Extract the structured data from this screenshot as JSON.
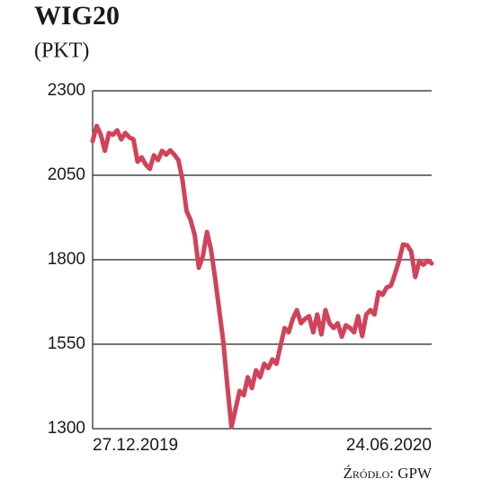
{
  "chart_data": {
    "type": "line",
    "title": "WIG20",
    "subtitle": "(PKT)",
    "source": "Źródło: GPW",
    "categories": [
      "27.12.2019",
      null,
      null,
      null,
      null,
      null,
      null,
      null,
      null,
      null,
      null,
      null,
      null,
      null,
      null,
      null,
      null,
      null,
      null,
      null,
      null,
      null,
      null,
      null,
      null,
      null,
      null,
      null,
      null,
      null,
      null,
      null,
      null,
      null,
      null,
      null,
      null,
      null,
      null,
      null,
      null,
      null,
      null,
      null,
      null,
      null,
      null,
      null,
      null,
      null,
      null,
      null,
      null,
      null,
      null,
      null,
      null,
      null,
      null,
      null,
      null,
      null,
      null,
      null,
      null,
      null,
      null,
      null,
      null,
      null,
      null,
      null,
      null,
      null,
      null,
      null,
      null,
      null,
      null,
      null,
      null,
      null,
      null,
      "24.06.2020"
    ],
    "values": [
      2151,
      2196,
      2170,
      2122,
      2175,
      2170,
      2183,
      2156,
      2175,
      2162,
      2156,
      2090,
      2103,
      2082,
      2069,
      2109,
      2095,
      2122,
      2111,
      2124,
      2111,
      2095,
      2037,
      1944,
      1917,
      1872,
      1776,
      1811,
      1882,
      1829,
      1744,
      1651,
      1558,
      1425,
      1305,
      1359,
      1412,
      1399,
      1452,
      1420,
      1473,
      1452,
      1492,
      1479,
      1505,
      1492,
      1545,
      1598,
      1585,
      1625,
      1651,
      1612,
      1625,
      1633,
      1585,
      1638,
      1579,
      1651,
      1612,
      1598,
      1612,
      1572,
      1606,
      1598,
      1585,
      1633,
      1574,
      1638,
      1651,
      1638,
      1704,
      1696,
      1718,
      1723,
      1757,
      1797,
      1845,
      1843,
      1824,
      1749,
      1797,
      1785,
      1797,
      1789
    ],
    "color": "#d0435a",
    "ylim": [
      1300,
      2300
    ],
    "yticks": [
      1300,
      1550,
      1800,
      2050,
      2300
    ],
    "grid": true
  }
}
